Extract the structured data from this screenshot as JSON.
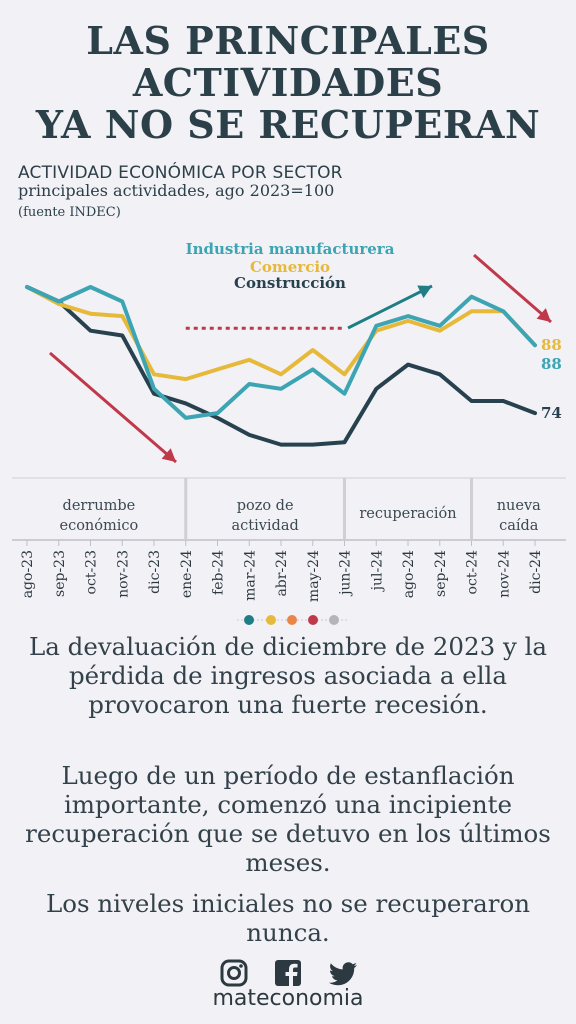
{
  "title": {
    "line1": "LAS PRINCIPALES",
    "line2": "ACTIVIDADES",
    "line3": "YA NO SE RECUPERAN"
  },
  "subtitle": {
    "line1": "ACTIVIDAD ECONÓMICA POR SECTOR",
    "line2": "principales actividades, ago 2023=100",
    "source": "(fuente INDEC)"
  },
  "chart_data": {
    "type": "line",
    "categories": [
      "ago-23",
      "sep-23",
      "oct-23",
      "nov-23",
      "dic-23",
      "ene-24",
      "feb-24",
      "mar-24",
      "abr-24",
      "may-24",
      "jun-24",
      "jul-24",
      "ago-24",
      "sep-24",
      "oct-24",
      "nov-24",
      "dic-24"
    ],
    "series": [
      {
        "name": "Industria manufacturera",
        "color": "#3ca4b2",
        "values": [
          100,
          97,
          100,
          97,
          79,
          73,
          74,
          80,
          79,
          83,
          78,
          92,
          94,
          92,
          98,
          95,
          88
        ]
      },
      {
        "name": "Comercio",
        "color": "#e7b93a",
        "values": [
          100,
          96.5,
          94.5,
          94,
          82,
          81,
          83,
          85,
          82,
          87,
          82,
          91,
          93,
          91,
          95,
          95,
          88
        ]
      },
      {
        "name": "Construcción",
        "color": "#27424e",
        "values": [
          100,
          97,
          91,
          90,
          78,
          76,
          73,
          69.5,
          67.5,
          67.5,
          68,
          79,
          84,
          82,
          76.5,
          76.5,
          74
        ]
      }
    ],
    "end_labels": [
      "88",
      "88",
      "74"
    ],
    "periods": [
      {
        "label1": "derrumbe",
        "label2": "económico"
      },
      {
        "label1": "pozo de",
        "label2": "actividad"
      },
      {
        "label1": "recuperación",
        "label2": ""
      },
      {
        "label1": "nueva",
        "label2": "caída"
      }
    ],
    "period_bounds": [
      5,
      10,
      14
    ],
    "reference_segment": {
      "from": 5,
      "to": 10,
      "value": 91.5,
      "color": "#c0394b"
    },
    "ylim": [
      60,
      102
    ],
    "arrow_colors": {
      "down": "#c0394b",
      "up": "#1f7d86"
    }
  },
  "dots": [
    "#1f7d86",
    "#e7b93a",
    "#e98549",
    "#c0394b",
    "#b5b5b9"
  ],
  "paragraphs": {
    "p1": "La devaluación de diciembre de 2023 y la pérdida de ingresos asociada a ella provocaron una fuerte recesión.",
    "p2": "Luego de un período de estanflación importante, comenzó una incipiente recuperación que se detuvo en los últimos meses.",
    "p3": "Los niveles iniciales no se recuperaron nunca."
  },
  "social": {
    "icons": [
      "instagram-icon",
      "facebook-icon",
      "twitter-icon"
    ],
    "brand": "mateconomia"
  }
}
